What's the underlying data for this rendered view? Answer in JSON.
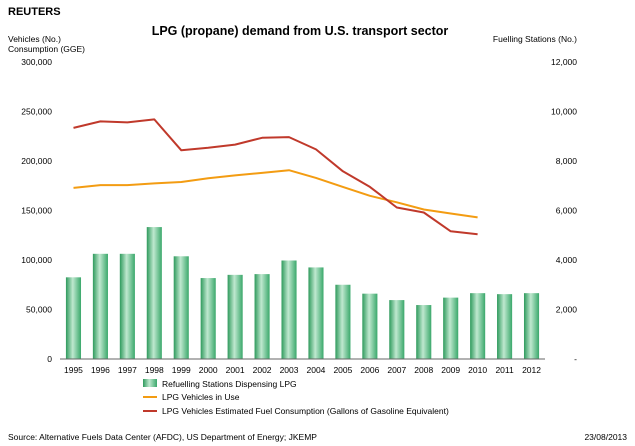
{
  "brand": "REUTERS",
  "source": "Source: Alternative Fuels Data Center (AFDC), US Department of Energy; JKEMP",
  "date": "23/08/2013",
  "colors": {
    "bars": "#3aa86b",
    "vehicles": "#f39c12",
    "fuel": "#c0392b",
    "axis": "#666666"
  },
  "chart_data": {
    "type": "bar",
    "title": "LPG (propane) demand from U.S. transport sector",
    "left_axis_label_1": "Vehicles (No.)",
    "left_axis_label_2": "Consumption (GGE)",
    "right_axis_label": "Fuelling Stations (No.)",
    "ylim_left": [
      0,
      300000
    ],
    "ylim_right": [
      0,
      12000
    ],
    "left_ticks": [
      "0",
      "50,000",
      "100,000",
      "150,000",
      "200,000",
      "250,000",
      "300,000"
    ],
    "right_ticks": [
      "-",
      "2,000",
      "4,000",
      "6,000",
      "8,000",
      "10,000",
      "12,000"
    ],
    "categories": [
      "1995",
      "1996",
      "1997",
      "1998",
      "1999",
      "2000",
      "2001",
      "2002",
      "2003",
      "2004",
      "2005",
      "2006",
      "2007",
      "2008",
      "2009",
      "2010",
      "2011",
      "2012"
    ],
    "series": [
      {
        "name": "Refuelling Stations Dispensing LPG",
        "type": "bar",
        "axis": "right",
        "values": [
          3300,
          4250,
          4250,
          5330,
          4150,
          3270,
          3400,
          3430,
          3980,
          3700,
          3000,
          2640,
          2380,
          2180,
          2480,
          2660,
          2620,
          2660
        ]
      },
      {
        "name": "LPG Vehicles in Use",
        "type": "line",
        "axis": "left",
        "values": [
          172800,
          175700,
          175700,
          177400,
          178800,
          182600,
          185500,
          188000,
          190700,
          182900,
          173800,
          164800,
          158300,
          151000,
          147000,
          143000,
          null,
          null
        ]
      },
      {
        "name": "LPG Vehicles Estimated Fuel Consumption (Gallons of Gasoline Equivalent)",
        "type": "line",
        "axis": "left",
        "values": [
          233400,
          240000,
          239000,
          242000,
          210800,
          213300,
          216600,
          223400,
          224100,
          211700,
          189600,
          173800,
          153000,
          148000,
          129000,
          126000,
          null,
          null
        ]
      }
    ]
  }
}
